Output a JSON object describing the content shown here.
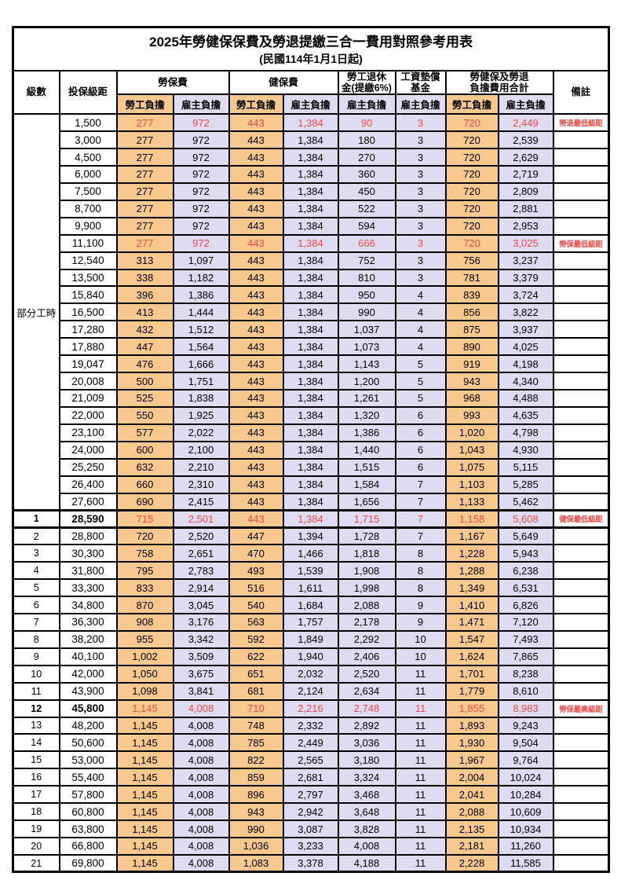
{
  "title": {
    "main": "2025年勞健保保費及勞退提繳三合一費用對照參考用表",
    "sub": "(民國114年1月1日起)"
  },
  "header": {
    "level": "級數",
    "bracket": "投保級距",
    "labor_insurance": "勞保費",
    "health_insurance": "健保費",
    "pension": "勞工退休\n金(提繳6%)",
    "wage_fund": "工資墊償\n基金",
    "total": "勞健保及勞退\n負擔費用合計",
    "remark": "備註",
    "employee_label": "勞工負擔",
    "employer_label": "雇主負擔"
  },
  "colors": {
    "employee_bg": "#F8C88E",
    "employer_bg": "#DFDBF0",
    "highlight_red": "#EE4A47",
    "border": "#000000"
  },
  "sections": [
    {
      "group_label": "部分工時",
      "rows": [
        {
          "level": "",
          "bracket": "1,500",
          "values": [
            "277",
            "972",
            "443",
            "1,384",
            "90",
            "3",
            "720",
            "2,449"
          ],
          "note": "勞退最低級距",
          "highlight": true,
          "bold": false
        },
        {
          "level": "",
          "bracket": "3,000",
          "values": [
            "277",
            "972",
            "443",
            "1,384",
            "180",
            "3",
            "720",
            "2,539"
          ],
          "note": "",
          "highlight": false,
          "bold": false
        },
        {
          "level": "",
          "bracket": "4,500",
          "values": [
            "277",
            "972",
            "443",
            "1,384",
            "270",
            "3",
            "720",
            "2,629"
          ],
          "note": "",
          "highlight": false,
          "bold": false
        },
        {
          "level": "",
          "bracket": "6,000",
          "values": [
            "277",
            "972",
            "443",
            "1,384",
            "360",
            "3",
            "720",
            "2,719"
          ],
          "note": "",
          "highlight": false,
          "bold": false
        },
        {
          "level": "",
          "bracket": "7,500",
          "values": [
            "277",
            "972",
            "443",
            "1,384",
            "450",
            "3",
            "720",
            "2,809"
          ],
          "note": "",
          "highlight": false,
          "bold": false
        },
        {
          "level": "",
          "bracket": "8,700",
          "values": [
            "277",
            "972",
            "443",
            "1,384",
            "522",
            "3",
            "720",
            "2,881"
          ],
          "note": "",
          "highlight": false,
          "bold": false
        },
        {
          "level": "",
          "bracket": "9,900",
          "values": [
            "277",
            "972",
            "443",
            "1,384",
            "594",
            "3",
            "720",
            "2,953"
          ],
          "note": "",
          "highlight": false,
          "bold": false
        },
        {
          "level": "",
          "bracket": "11,100",
          "values": [
            "277",
            "972",
            "443",
            "1,384",
            "666",
            "3",
            "720",
            "3,025"
          ],
          "note": "勞保最低級距",
          "highlight": true,
          "bold": false
        },
        {
          "level": "",
          "bracket": "12,540",
          "values": [
            "313",
            "1,097",
            "443",
            "1,384",
            "752",
            "3",
            "756",
            "3,237"
          ],
          "note": "",
          "highlight": false,
          "bold": false
        },
        {
          "level": "",
          "bracket": "13,500",
          "values": [
            "338",
            "1,182",
            "443",
            "1,384",
            "810",
            "3",
            "781",
            "3,379"
          ],
          "note": "",
          "highlight": false,
          "bold": false
        },
        {
          "level": "",
          "bracket": "15,840",
          "values": [
            "396",
            "1,386",
            "443",
            "1,384",
            "950",
            "4",
            "839",
            "3,724"
          ],
          "note": "",
          "highlight": false,
          "bold": false
        },
        {
          "level": "",
          "bracket": "16,500",
          "values": [
            "413",
            "1,444",
            "443",
            "1,384",
            "990",
            "4",
            "856",
            "3,822"
          ],
          "note": "",
          "highlight": false,
          "bold": false
        },
        {
          "level": "",
          "bracket": "17,280",
          "values": [
            "432",
            "1,512",
            "443",
            "1,384",
            "1,037",
            "4",
            "875",
            "3,937"
          ],
          "note": "",
          "highlight": false,
          "bold": false
        },
        {
          "level": "",
          "bracket": "17,880",
          "values": [
            "447",
            "1,564",
            "443",
            "1,384",
            "1,073",
            "4",
            "890",
            "4,025"
          ],
          "note": "",
          "highlight": false,
          "bold": false
        },
        {
          "level": "",
          "bracket": "19,047",
          "values": [
            "476",
            "1,666",
            "443",
            "1,384",
            "1,143",
            "5",
            "919",
            "4,198"
          ],
          "note": "",
          "highlight": false,
          "bold": false
        },
        {
          "level": "",
          "bracket": "20,008",
          "values": [
            "500",
            "1,751",
            "443",
            "1,384",
            "1,200",
            "5",
            "943",
            "4,340"
          ],
          "note": "",
          "highlight": false,
          "bold": false
        },
        {
          "level": "",
          "bracket": "21,009",
          "values": [
            "525",
            "1,838",
            "443",
            "1,384",
            "1,261",
            "5",
            "968",
            "4,488"
          ],
          "note": "",
          "highlight": false,
          "bold": false
        },
        {
          "level": "",
          "bracket": "22,000",
          "values": [
            "550",
            "1,925",
            "443",
            "1,384",
            "1,320",
            "6",
            "993",
            "4,635"
          ],
          "note": "",
          "highlight": false,
          "bold": false
        },
        {
          "level": "",
          "bracket": "23,100",
          "values": [
            "577",
            "2,022",
            "443",
            "1,384",
            "1,386",
            "6",
            "1,020",
            "4,798"
          ],
          "note": "",
          "highlight": false,
          "bold": false
        },
        {
          "level": "",
          "bracket": "24,000",
          "values": [
            "600",
            "2,100",
            "443",
            "1,384",
            "1,440",
            "6",
            "1,043",
            "4,930"
          ],
          "note": "",
          "highlight": false,
          "bold": false
        },
        {
          "level": "",
          "bracket": "25,250",
          "values": [
            "632",
            "2,210",
            "443",
            "1,384",
            "1,515",
            "6",
            "1,075",
            "5,115"
          ],
          "note": "",
          "highlight": false,
          "bold": false
        },
        {
          "level": "",
          "bracket": "26,400",
          "values": [
            "660",
            "2,310",
            "443",
            "1,384",
            "1,584",
            "7",
            "1,103",
            "5,285"
          ],
          "note": "",
          "highlight": false,
          "bold": false
        },
        {
          "level": "",
          "bracket": "27,600",
          "values": [
            "690",
            "2,415",
            "443",
            "1,384",
            "1,656",
            "7",
            "1,133",
            "5,462"
          ],
          "note": "",
          "highlight": false,
          "bold": false
        }
      ]
    },
    {
      "group_label": null,
      "rows": [
        {
          "level": "1",
          "bracket": "28,590",
          "values": [
            "715",
            "2,501",
            "443",
            "1,384",
            "1,715",
            "7",
            "1,158",
            "5,608"
          ],
          "note": "健保最低級距",
          "highlight": true,
          "bold": true
        },
        {
          "level": "2",
          "bracket": "28,800",
          "values": [
            "720",
            "2,520",
            "447",
            "1,394",
            "1,728",
            "7",
            "1,167",
            "5,649"
          ],
          "note": "",
          "highlight": false,
          "bold": false
        },
        {
          "level": "3",
          "bracket": "30,300",
          "values": [
            "758",
            "2,651",
            "470",
            "1,466",
            "1,818",
            "8",
            "1,228",
            "5,943"
          ],
          "note": "",
          "highlight": false,
          "bold": false
        },
        {
          "level": "4",
          "bracket": "31,800",
          "values": [
            "795",
            "2,783",
            "493",
            "1,539",
            "1,908",
            "8",
            "1,288",
            "6,238"
          ],
          "note": "",
          "highlight": false,
          "bold": false
        },
        {
          "level": "5",
          "bracket": "33,300",
          "values": [
            "833",
            "2,914",
            "516",
            "1,611",
            "1,998",
            "8",
            "1,349",
            "6,531"
          ],
          "note": "",
          "highlight": false,
          "bold": false
        },
        {
          "level": "6",
          "bracket": "34,800",
          "values": [
            "870",
            "3,045",
            "540",
            "1,684",
            "2,088",
            "9",
            "1,410",
            "6,826"
          ],
          "note": "",
          "highlight": false,
          "bold": false
        },
        {
          "level": "7",
          "bracket": "36,300",
          "values": [
            "908",
            "3,176",
            "563",
            "1,757",
            "2,178",
            "9",
            "1,471",
            "7,120"
          ],
          "note": "",
          "highlight": false,
          "bold": false
        },
        {
          "level": "8",
          "bracket": "38,200",
          "values": [
            "955",
            "3,342",
            "592",
            "1,849",
            "2,292",
            "10",
            "1,547",
            "7,493"
          ],
          "note": "",
          "highlight": false,
          "bold": false
        },
        {
          "level": "9",
          "bracket": "40,100",
          "values": [
            "1,002",
            "3,509",
            "622",
            "1,940",
            "2,406",
            "10",
            "1,624",
            "7,865"
          ],
          "note": "",
          "highlight": false,
          "bold": false
        },
        {
          "level": "10",
          "bracket": "42,000",
          "values": [
            "1,050",
            "3,675",
            "651",
            "2,032",
            "2,520",
            "11",
            "1,701",
            "8,238"
          ],
          "note": "",
          "highlight": false,
          "bold": false
        },
        {
          "level": "11",
          "bracket": "43,900",
          "values": [
            "1,098",
            "3,841",
            "681",
            "2,124",
            "2,634",
            "11",
            "1,779",
            "8,610"
          ],
          "note": "",
          "highlight": false,
          "bold": false
        },
        {
          "level": "12",
          "bracket": "45,800",
          "values": [
            "1,145",
            "4,008",
            "710",
            "2,216",
            "2,748",
            "11",
            "1,855",
            "8,983"
          ],
          "note": "勞保最高級距",
          "highlight": true,
          "bold": true
        },
        {
          "level": "13",
          "bracket": "48,200",
          "values": [
            "1,145",
            "4,008",
            "748",
            "2,332",
            "2,892",
            "11",
            "1,893",
            "9,243"
          ],
          "note": "",
          "highlight": false,
          "bold": false
        },
        {
          "level": "14",
          "bracket": "50,600",
          "values": [
            "1,145",
            "4,008",
            "785",
            "2,449",
            "3,036",
            "11",
            "1,930",
            "9,504"
          ],
          "note": "",
          "highlight": false,
          "bold": false
        },
        {
          "level": "15",
          "bracket": "53,000",
          "values": [
            "1,145",
            "4,008",
            "822",
            "2,565",
            "3,180",
            "11",
            "1,967",
            "9,764"
          ],
          "note": "",
          "highlight": false,
          "bold": false
        },
        {
          "level": "16",
          "bracket": "55,400",
          "values": [
            "1,145",
            "4,008",
            "859",
            "2,681",
            "3,324",
            "11",
            "2,004",
            "10,024"
          ],
          "note": "",
          "highlight": false,
          "bold": false
        },
        {
          "level": "17",
          "bracket": "57,800",
          "values": [
            "1,145",
            "4,008",
            "896",
            "2,797",
            "3,468",
            "11",
            "2,041",
            "10,284"
          ],
          "note": "",
          "highlight": false,
          "bold": false
        },
        {
          "level": "18",
          "bracket": "60,800",
          "values": [
            "1,145",
            "4,008",
            "943",
            "2,942",
            "3,648",
            "11",
            "2,088",
            "10,609"
          ],
          "note": "",
          "highlight": false,
          "bold": false
        },
        {
          "level": "19",
          "bracket": "63,800",
          "values": [
            "1,145",
            "4,008",
            "990",
            "3,087",
            "3,828",
            "11",
            "2,135",
            "10,934"
          ],
          "note": "",
          "highlight": false,
          "bold": false
        },
        {
          "level": "20",
          "bracket": "66,800",
          "values": [
            "1,145",
            "4,008",
            "1,036",
            "3,233",
            "4,008",
            "11",
            "2,181",
            "11,260"
          ],
          "note": "",
          "highlight": false,
          "bold": false
        },
        {
          "level": "21",
          "bracket": "69,800",
          "values": [
            "1,145",
            "4,008",
            "1,083",
            "3,378",
            "4,188",
            "11",
            "2,228",
            "11,585"
          ],
          "note": "",
          "highlight": false,
          "bold": false
        }
      ]
    }
  ]
}
